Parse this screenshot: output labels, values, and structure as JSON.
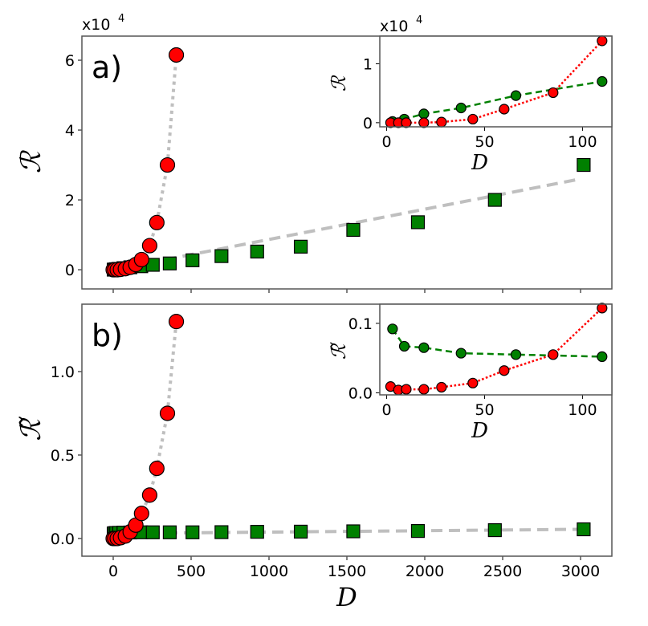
{
  "chart_data": [
    {
      "panel_label": "a)",
      "type": "scatter",
      "xlabel": "",
      "ylabel": "ℛ",
      "y_multiplier": "x10",
      "y_multiplier_exp": "4",
      "xlim": [
        -201,
        3201
      ],
      "ylim": [
        -0.55,
        6.69
      ],
      "xticks": [
        0,
        500,
        1000,
        1500,
        2000,
        2500,
        3000
      ],
      "xtick_labels": [
        "",
        "",
        "",
        "",
        "",
        "",
        ""
      ],
      "yticks": [
        0,
        2,
        4,
        6
      ],
      "ytick_labels": [
        "0",
        "2",
        "4",
        "6"
      ],
      "grid": false,
      "series": [
        {
          "marker": "square",
          "color": "#008000",
          "x": [
            3,
            9,
            19,
            38,
            66,
            110,
            180,
            254,
            363,
            509,
            695,
            924,
            1204,
            1541,
            1956,
            2450,
            3020
          ],
          "y": [
            0.002,
            0.006,
            0.015,
            0.025,
            0.045,
            0.07,
            0.1,
            0.14,
            0.18,
            0.27,
            0.39,
            0.52,
            0.66,
            1.14,
            1.36,
            2.0,
            3.0
          ]
        },
        {
          "marker": "circle",
          "color": "#ff0000",
          "x": [
            0,
            10,
            26,
            47,
            78,
            109,
            145,
            182,
            234,
            280,
            348,
            405
          ],
          "y": [
            0,
            0,
            0,
            0.01,
            0.03,
            0.07,
            0.15,
            0.29,
            0.69,
            1.35,
            3.0,
            6.15
          ]
        }
      ],
      "fits": [
        {
          "style": "dashed",
          "color": "#bfbfbf",
          "x": [
            0,
            3000
          ],
          "y": [
            0,
            2.6
          ]
        },
        {
          "style": "dotted",
          "color": "#bfbfbf",
          "x": [
            0,
            47,
            109,
            182,
            234,
            280,
            348,
            405
          ],
          "y": [
            0,
            0.01,
            0.07,
            0.29,
            0.69,
            1.35,
            3.0,
            6.15
          ]
        }
      ],
      "inset": {
        "xlabel": "D",
        "ylabel": "ℛ",
        "y_multiplier": "x10",
        "y_multiplier_exp": "4",
        "xlim": [
          -3.5,
          115
        ],
        "ylim": [
          -0.07,
          1.47
        ],
        "xticks": [
          0,
          50,
          100
        ],
        "xtick_labels": [
          "0",
          "50",
          "100"
        ],
        "yticks": [
          0,
          1
        ],
        "ytick_labels": [
          "0",
          "1"
        ],
        "series": [
          {
            "marker": "circle",
            "color": "#008000",
            "line": "dashed",
            "x": [
              3,
              9,
              19,
              38,
              66,
              110
            ],
            "y": [
              0.02,
              0.06,
              0.15,
              0.25,
              0.46,
              0.7
            ]
          },
          {
            "marker": "circle",
            "color": "#ff0000",
            "line": "dotted",
            "x": [
              2,
              6,
              10,
              19,
              28,
              44,
              60,
              85,
              110
            ],
            "y": [
              0,
              0,
              0,
              0,
              0.01,
              0.06,
              0.23,
              0.51,
              1.39
            ]
          }
        ]
      }
    },
    {
      "panel_label": "b)",
      "type": "scatter",
      "xlabel": "D",
      "ylabel": "ℛ̃",
      "xlim": [
        -201,
        3201
      ],
      "ylim": [
        -0.106,
        1.404
      ],
      "xticks": [
        0,
        500,
        1000,
        1500,
        2000,
        2500,
        3000
      ],
      "xtick_labels": [
        "0",
        "500",
        "1000",
        "1500",
        "2000",
        "2500",
        "3000"
      ],
      "yticks": [
        0,
        0.5,
        1.0
      ],
      "ytick_labels": [
        "0.0",
        "0.5",
        "1.0"
      ],
      "grid": false,
      "series": [
        {
          "marker": "square",
          "color": "#008000",
          "x": [
            3,
            9,
            19,
            38,
            66,
            110,
            180,
            254,
            363,
            509,
            695,
            924,
            1204,
            1541,
            1956,
            2450,
            3020
          ],
          "y": [
            0.03,
            0.032,
            0.033,
            0.034,
            0.035,
            0.036,
            0.037,
            0.037,
            0.037,
            0.037,
            0.038,
            0.04,
            0.041,
            0.043,
            0.045,
            0.05,
            0.055
          ]
        },
        {
          "marker": "circle",
          "color": "#ff0000",
          "x": [
            0,
            10,
            26,
            47,
            78,
            109,
            145,
            182,
            234,
            280,
            348,
            405
          ],
          "y": [
            0,
            0,
            0,
            0.005,
            0.015,
            0.04,
            0.08,
            0.15,
            0.26,
            0.42,
            0.75,
            1.3
          ]
        }
      ],
      "fits": [
        {
          "style": "dashed",
          "color": "#bfbfbf",
          "x": [
            0,
            3000
          ],
          "y": [
            0.03,
            0.055
          ]
        },
        {
          "style": "dotted",
          "color": "#bfbfbf",
          "x": [
            0,
            47,
            109,
            182,
            234,
            280,
            348,
            405
          ],
          "y": [
            0,
            0.005,
            0.04,
            0.15,
            0.26,
            0.42,
            0.75,
            1.3
          ]
        }
      ],
      "inset": {
        "xlabel": "D",
        "ylabel": "ℛ̃",
        "xlim": [
          -3.5,
          115
        ],
        "ylim": [
          -0.003,
          0.1276
        ],
        "xticks": [
          0,
          50,
          100
        ],
        "xtick_labels": [
          "0",
          "50",
          "100"
        ],
        "yticks": [
          0,
          0.1
        ],
        "ytick_labels": [
          "0.0",
          "0.1"
        ],
        "series": [
          {
            "marker": "circle",
            "color": "#008000",
            "line": "dashed",
            "x": [
              3,
              9,
              19,
              38,
              66,
              110
            ],
            "y": [
              0.092,
              0.067,
              0.065,
              0.057,
              0.055,
              0.052
            ]
          },
          {
            "marker": "circle",
            "color": "#ff0000",
            "line": "dotted",
            "x": [
              2,
              6,
              10,
              19,
              28,
              44,
              60,
              85,
              110
            ],
            "y": [
              0.009,
              0.004,
              0.005,
              0.005,
              0.008,
              0.014,
              0.032,
              0.055,
              0.122
            ]
          }
        ]
      }
    }
  ]
}
